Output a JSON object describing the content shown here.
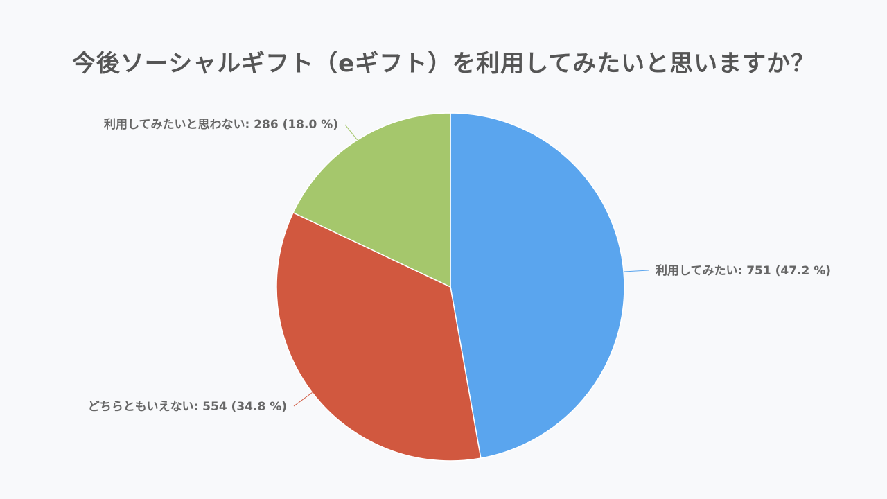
{
  "chart_data": {
    "type": "pie",
    "title": "今後ソーシャルギフト（eギフト）を利用してみたいと思いますか？",
    "categories": [
      "利用してみたい",
      "どちらともいえない",
      "利用してみたいと思わない"
    ],
    "values": [
      751,
      554,
      286
    ],
    "percentages": [
      "47.2 %",
      "34.8 %",
      "18.0 %"
    ],
    "labels": [
      "利用してみたい: 751 (47.2 %)",
      "どちらともいえない: 554 (34.8 %)",
      "利用してみたいと思わない: 286 (18.0 %)"
    ],
    "colors": [
      "#5aa5ee",
      "#d1583f",
      "#a5c76c"
    ],
    "start_angle_deg": 0,
    "direction": "clockwise",
    "legend": "none"
  }
}
